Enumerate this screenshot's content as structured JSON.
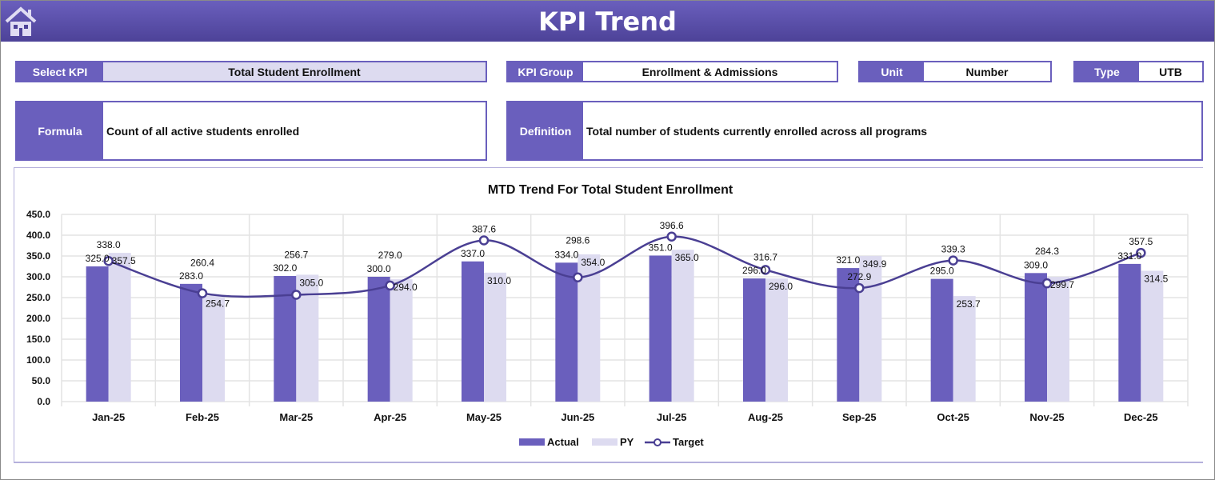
{
  "header": {
    "title": "KPI Trend",
    "home_icon": "home-icon"
  },
  "filters": {
    "select_kpi_label": "Select KPI",
    "select_kpi_value": "Total Student Enrollment",
    "kpi_group_label": "KPI Group",
    "kpi_group_value": "Enrollment & Admissions",
    "unit_label": "Unit",
    "unit_value": "Number",
    "type_label": "Type",
    "type_value": "UTB"
  },
  "formula": {
    "label": "Formula",
    "value": "Count of all active students enrolled"
  },
  "definition": {
    "label": "Definition",
    "value": "Total number of students currently enrolled across all programs"
  },
  "colors": {
    "actual": "#6a5fbd",
    "py": "#dddbf0",
    "target": "#4a3f93",
    "header": "#5b50ad"
  },
  "chart_data": {
    "type": "bar",
    "title": "MTD Trend For Total Student Enrollment",
    "categories": [
      "Jan-25",
      "Feb-25",
      "Mar-25",
      "Apr-25",
      "May-25",
      "Jun-25",
      "Jul-25",
      "Aug-25",
      "Sep-25",
      "Oct-25",
      "Nov-25",
      "Dec-25"
    ],
    "ylim": [
      0,
      450
    ],
    "yticks": [
      "0.0",
      "50.0",
      "100.0",
      "150.0",
      "200.0",
      "250.0",
      "300.0",
      "350.0",
      "400.0",
      "450.0"
    ],
    "grid": true,
    "legend": "bottom",
    "series": [
      {
        "name": "Actual",
        "type": "bar",
        "values": [
          325.0,
          283.0,
          302.0,
          300.0,
          337.0,
          334.0,
          351.0,
          296.0,
          321.0,
          295.0,
          309.0,
          331.0
        ]
      },
      {
        "name": "PY",
        "type": "bar",
        "values": [
          357.5,
          254.7,
          305.0,
          294.0,
          310.0,
          354.0,
          365.0,
          296.0,
          349.9,
          253.7,
          299.7,
          314.5
        ]
      },
      {
        "name": "Target",
        "type": "line",
        "values": [
          338.0,
          260.4,
          256.7,
          279.0,
          387.6,
          298.6,
          396.6,
          316.7,
          272.9,
          339.3,
          284.3,
          357.5
        ]
      }
    ]
  }
}
